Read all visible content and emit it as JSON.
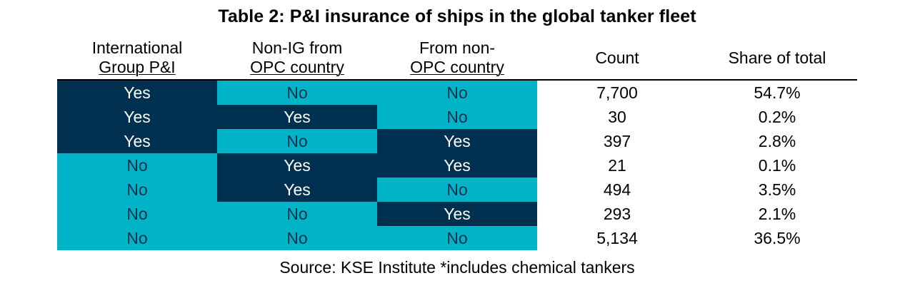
{
  "title": "Table 2: P&I insurance of ships in the global tanker fleet",
  "headers": {
    "ig": [
      "International",
      "Group P&I"
    ],
    "non_ig": [
      "Non-IG from",
      "OPC country"
    ],
    "non_opc": [
      "From non-",
      "OPC country"
    ],
    "count": "Count",
    "share": "Share of total"
  },
  "rows": [
    {
      "ig": "Yes",
      "non_ig": "No",
      "non_opc": "No",
      "count": "7,700",
      "share": "54.7%"
    },
    {
      "ig": "Yes",
      "non_ig": "Yes",
      "non_opc": "No",
      "count": "30",
      "share": "0.2%"
    },
    {
      "ig": "Yes",
      "non_ig": "No",
      "non_opc": "Yes",
      "count": "397",
      "share": "2.8%"
    },
    {
      "ig": "No",
      "non_ig": "Yes",
      "non_opc": "Yes",
      "count": "21",
      "share": "0.1%"
    },
    {
      "ig": "No",
      "non_ig": "Yes",
      "non_opc": "No",
      "count": "494",
      "share": "3.5%"
    },
    {
      "ig": "No",
      "non_ig": "No",
      "non_opc": "Yes",
      "count": "293",
      "share": "2.1%"
    },
    {
      "ig": "No",
      "non_ig": "No",
      "non_opc": "No",
      "count": "5,134",
      "share": "36.5%"
    }
  ],
  "source": "Source: KSE Institute *includes chemical tankers",
  "colors": {
    "yes_fill": "#00304f",
    "no_fill": "#00b3c6",
    "yes_text": "#ffffff",
    "no_text": "#00304f"
  }
}
